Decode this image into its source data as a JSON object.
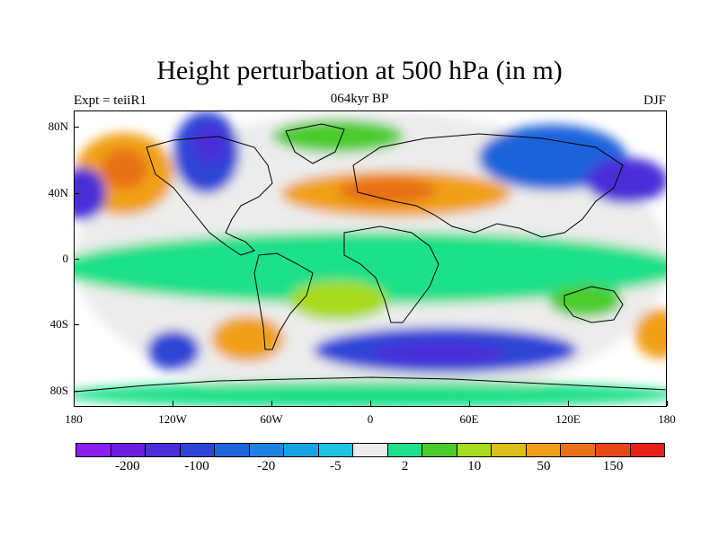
{
  "title": "Height perturbation at 500 hPa (in m)",
  "subtitle_left": "Expt = teiiR1",
  "subtitle_center": "064kyr BP",
  "subtitle_right": "DJF",
  "y_ticks": [
    {
      "label": "80N",
      "lat": 80
    },
    {
      "label": "40N",
      "lat": 40
    },
    {
      "label": "0",
      "lat": 0
    },
    {
      "label": "40S",
      "lat": -40
    },
    {
      "label": "80S",
      "lat": -80
    }
  ],
  "x_ticks": [
    {
      "label": "180",
      "lon": -180
    },
    {
      "label": "120W",
      "lon": -120
    },
    {
      "label": "60W",
      "lon": -60
    },
    {
      "label": "0",
      "lon": 0
    },
    {
      "label": "60E",
      "lon": 60
    },
    {
      "label": "120E",
      "lon": 120
    },
    {
      "label": "180",
      "lon": 180
    }
  ],
  "colorbar": {
    "colors": [
      "#8a1ff0",
      "#6a1fe0",
      "#4a2ed8",
      "#2e44d6",
      "#1e64da",
      "#1a84e0",
      "#18a4e4",
      "#1ec4e4",
      "#ececec",
      "#1ee08a",
      "#4ccc2a",
      "#a8dc1e",
      "#d8c018",
      "#f0a018",
      "#e87018",
      "#e84818",
      "#e82018"
    ],
    "labels": [
      {
        "text": "-200",
        "index": 1
      },
      {
        "text": "-100",
        "index": 3
      },
      {
        "text": "-20",
        "index": 5
      },
      {
        "text": "-5",
        "index": 7
      },
      {
        "text": "2",
        "index": 9
      },
      {
        "text": "10",
        "index": 11
      },
      {
        "text": "50",
        "index": 13
      },
      {
        "text": "150",
        "index": 15
      }
    ]
  },
  "map_regions": [
    {
      "name": "background-zero",
      "color": "#ececec",
      "lon": 0,
      "lat": 0,
      "rlon": 180,
      "rlat": 90
    },
    {
      "name": "tropical-band-green",
      "color": "#1ee08a",
      "lon": 0,
      "lat": -5,
      "rlon": 190,
      "rlat": 22
    },
    {
      "name": "north-pacific-orange",
      "color": "#f0a018",
      "lon": -150,
      "lat": 52,
      "rlon": 30,
      "rlat": 25
    },
    {
      "name": "north-pacific-core",
      "color": "#e87018",
      "lon": -150,
      "lat": 55,
      "rlon": 14,
      "rlat": 12
    },
    {
      "name": "west-pacific-purple",
      "color": "#4a2ed8",
      "lon": -175,
      "lat": 40,
      "rlon": 14,
      "rlat": 16
    },
    {
      "name": "canada-blue",
      "color": "#2e44d6",
      "lon": -100,
      "lat": 65,
      "rlon": 20,
      "rlat": 25
    },
    {
      "name": "canada-core",
      "color": "#4a2ed8",
      "lon": -98,
      "lat": 70,
      "rlon": 10,
      "rlat": 12
    },
    {
      "name": "atlantic-europe-orange",
      "color": "#f0a018",
      "lon": 15,
      "lat": 40,
      "rlon": 70,
      "rlat": 14
    },
    {
      "name": "europe-core",
      "color": "#e87018",
      "lon": 10,
      "lat": 42,
      "rlon": 30,
      "rlat": 8
    },
    {
      "name": "arctic-green",
      "color": "#4ccc2a",
      "lon": -20,
      "lat": 75,
      "rlon": 40,
      "rlat": 10
    },
    {
      "name": "siberia-blue",
      "color": "#1e64da",
      "lon": 110,
      "lat": 62,
      "rlon": 45,
      "rlat": 20
    },
    {
      "name": "east-asia-purple",
      "color": "#4a2ed8",
      "lon": 155,
      "lat": 48,
      "rlon": 25,
      "rlat": 14
    },
    {
      "name": "south-atlantic-yellow",
      "color": "#a8dc1e",
      "lon": -20,
      "lat": -25,
      "rlon": 30,
      "rlat": 12
    },
    {
      "name": "south-pacific-orange",
      "color": "#f0a018",
      "lon": -75,
      "lat": -48,
      "rlon": 22,
      "rlat": 14
    },
    {
      "name": "south-pacific-blue",
      "color": "#2e44d6",
      "lon": -120,
      "lat": -55,
      "rlon": 16,
      "rlat": 12
    },
    {
      "name": "southern-ocean-blue",
      "color": "#2e44d6",
      "lon": 45,
      "lat": -55,
      "rlon": 80,
      "rlat": 14
    },
    {
      "name": "southern-ocean-core",
      "color": "#4a2ed8",
      "lon": 40,
      "lat": -57,
      "rlon": 40,
      "rlat": 7
    },
    {
      "name": "australia-green",
      "color": "#4ccc2a",
      "lon": 130,
      "lat": -25,
      "rlon": 22,
      "rlat": 10
    },
    {
      "name": "east-pacific-orange",
      "color": "#f0a018",
      "lon": 175,
      "lat": -45,
      "rlon": 15,
      "rlat": 15
    },
    {
      "name": "antarctica-green",
      "color": "#1ee08a",
      "lon": 0,
      "lat": -82,
      "rlon": 190,
      "rlat": 8
    }
  ]
}
